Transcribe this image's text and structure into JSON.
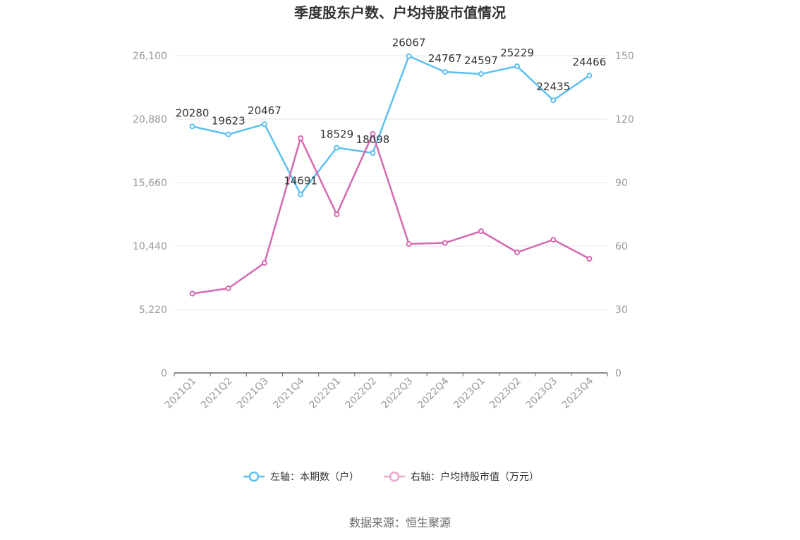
{
  "chart_data": {
    "type": "line",
    "title": "季度股东户数、户均持股市值情况",
    "categories": [
      "2021Q1",
      "2021Q2",
      "2021Q3",
      "2021Q4",
      "2022Q1",
      "2022Q2",
      "2022Q3",
      "2022Q4",
      "2023Q1",
      "2023Q2",
      "2023Q3",
      "2023Q4"
    ],
    "left_axis": {
      "ticks": [
        "0",
        "5,220",
        "10,440",
        "15,660",
        "20,880",
        "26,100"
      ],
      "range": [
        0,
        26100
      ]
    },
    "right_axis": {
      "ticks": [
        "0",
        "30",
        "60",
        "90",
        "120",
        "150"
      ],
      "range": [
        0,
        150
      ]
    },
    "series": [
      {
        "name": "左轴：本期数（户）",
        "axis": "left",
        "color": "#5bc0f0",
        "values": [
          20280,
          19623,
          20467,
          14691,
          18529,
          18098,
          26067,
          24767,
          24597,
          25229,
          22435,
          24466
        ],
        "labels": [
          "20280",
          "19623",
          "20467",
          "14691",
          "18529",
          "18098",
          "26067",
          "24767",
          "24597",
          "25229",
          "22435",
          "24466"
        ]
      },
      {
        "name": "右轴：户均持股市值（万元）",
        "axis": "right",
        "color": "#d46ab0",
        "values": [
          37.5,
          40,
          52,
          111,
          75,
          113,
          61,
          61.5,
          67,
          57,
          63,
          54
        ]
      }
    ],
    "grid": true,
    "legend_position": "bottom"
  },
  "source": "数据来源：恒生聚源"
}
